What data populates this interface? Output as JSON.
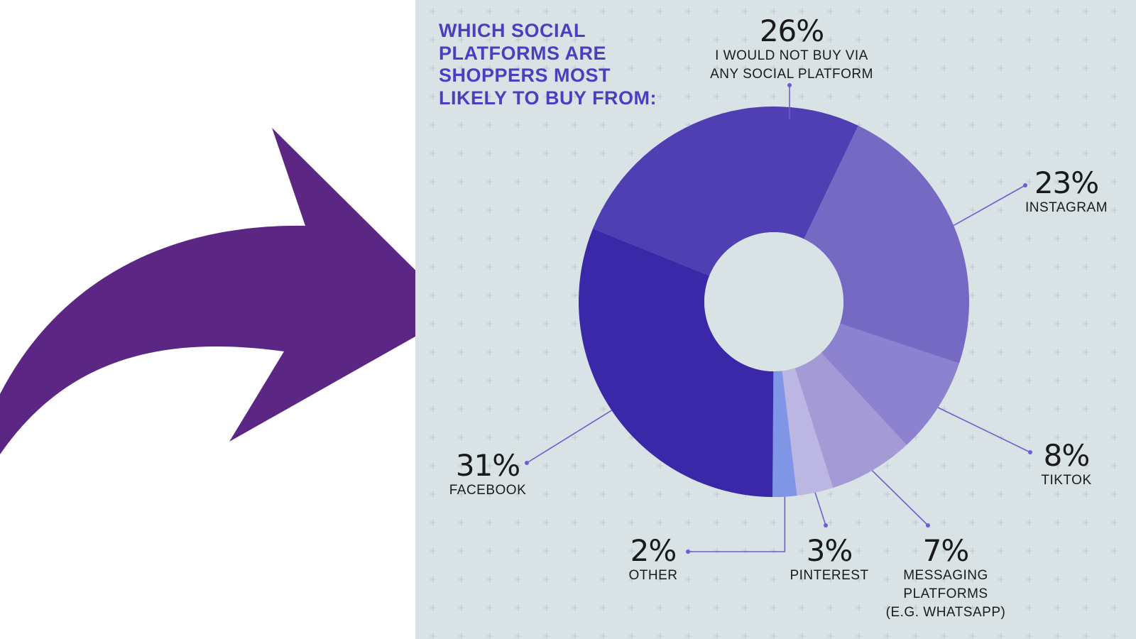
{
  "colors": {
    "arrow": "#5c2684",
    "panel_background": "#d9e3e5",
    "title": "#4b3fc0",
    "leader_line": "#6b5fd0"
  },
  "icons": {
    "arrow": "curved-arrow-icon"
  },
  "chart_data": {
    "type": "pie",
    "style": "donut",
    "title": "WHICH SOCIAL PLATFORMS ARE SHOPPERS MOST LIKELY TO BUY FROM:",
    "unit": "%",
    "slices": [
      {
        "label": "I WOULD NOT BUY VIA ANY SOCIAL PLATFORM",
        "value": 26,
        "display": "26%",
        "color": "#4f3fb3"
      },
      {
        "label": "INSTAGRAM",
        "value": 23,
        "display": "23%",
        "color": "#7569c4"
      },
      {
        "label": "TIKTOK",
        "value": 8,
        "display": "8%",
        "color": "#8c82cf"
      },
      {
        "label": "MESSAGING PLATFORMS (E.G. WHATSAPP)",
        "value": 7,
        "display": "7%",
        "color": "#a49bd6"
      },
      {
        "label": "PINTEREST",
        "value": 3,
        "display": "3%",
        "color": "#bcb6e2"
      },
      {
        "label": "OTHER",
        "value": 2,
        "display": "2%",
        "color": "#7f96e6"
      },
      {
        "label": "FACEBOOK",
        "value": 31,
        "display": "31%",
        "color": "#3a28a8"
      }
    ],
    "legend": "none"
  }
}
